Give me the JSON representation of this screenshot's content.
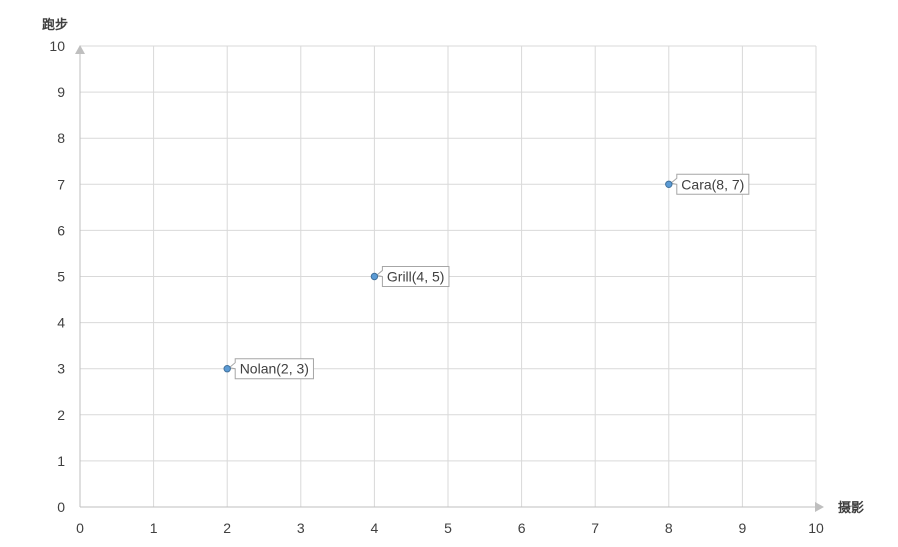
{
  "chart_data": {
    "type": "scatter",
    "xlabel": "摄影",
    "ylabel": "跑步",
    "xlim": [
      0,
      10
    ],
    "ylim": [
      0,
      10
    ],
    "xticks": [
      0,
      1,
      2,
      3,
      4,
      5,
      6,
      7,
      8,
      9,
      10
    ],
    "yticks": [
      0,
      1,
      2,
      3,
      4,
      5,
      6,
      7,
      8,
      9,
      10
    ],
    "grid": true,
    "points": [
      {
        "name": "Nolan",
        "x": 2,
        "y": 3,
        "label": "Nolan(2, 3)"
      },
      {
        "name": "Grill",
        "x": 4,
        "y": 5,
        "label": "Grill(4, 5)"
      },
      {
        "name": "Cara",
        "x": 8,
        "y": 7,
        "label": "Cara(8, 7)"
      }
    ],
    "colors": {
      "point": "#5b9bd5",
      "grid": "#d9d9d9",
      "axis": "#bfbfbf",
      "text": "#404040"
    }
  }
}
